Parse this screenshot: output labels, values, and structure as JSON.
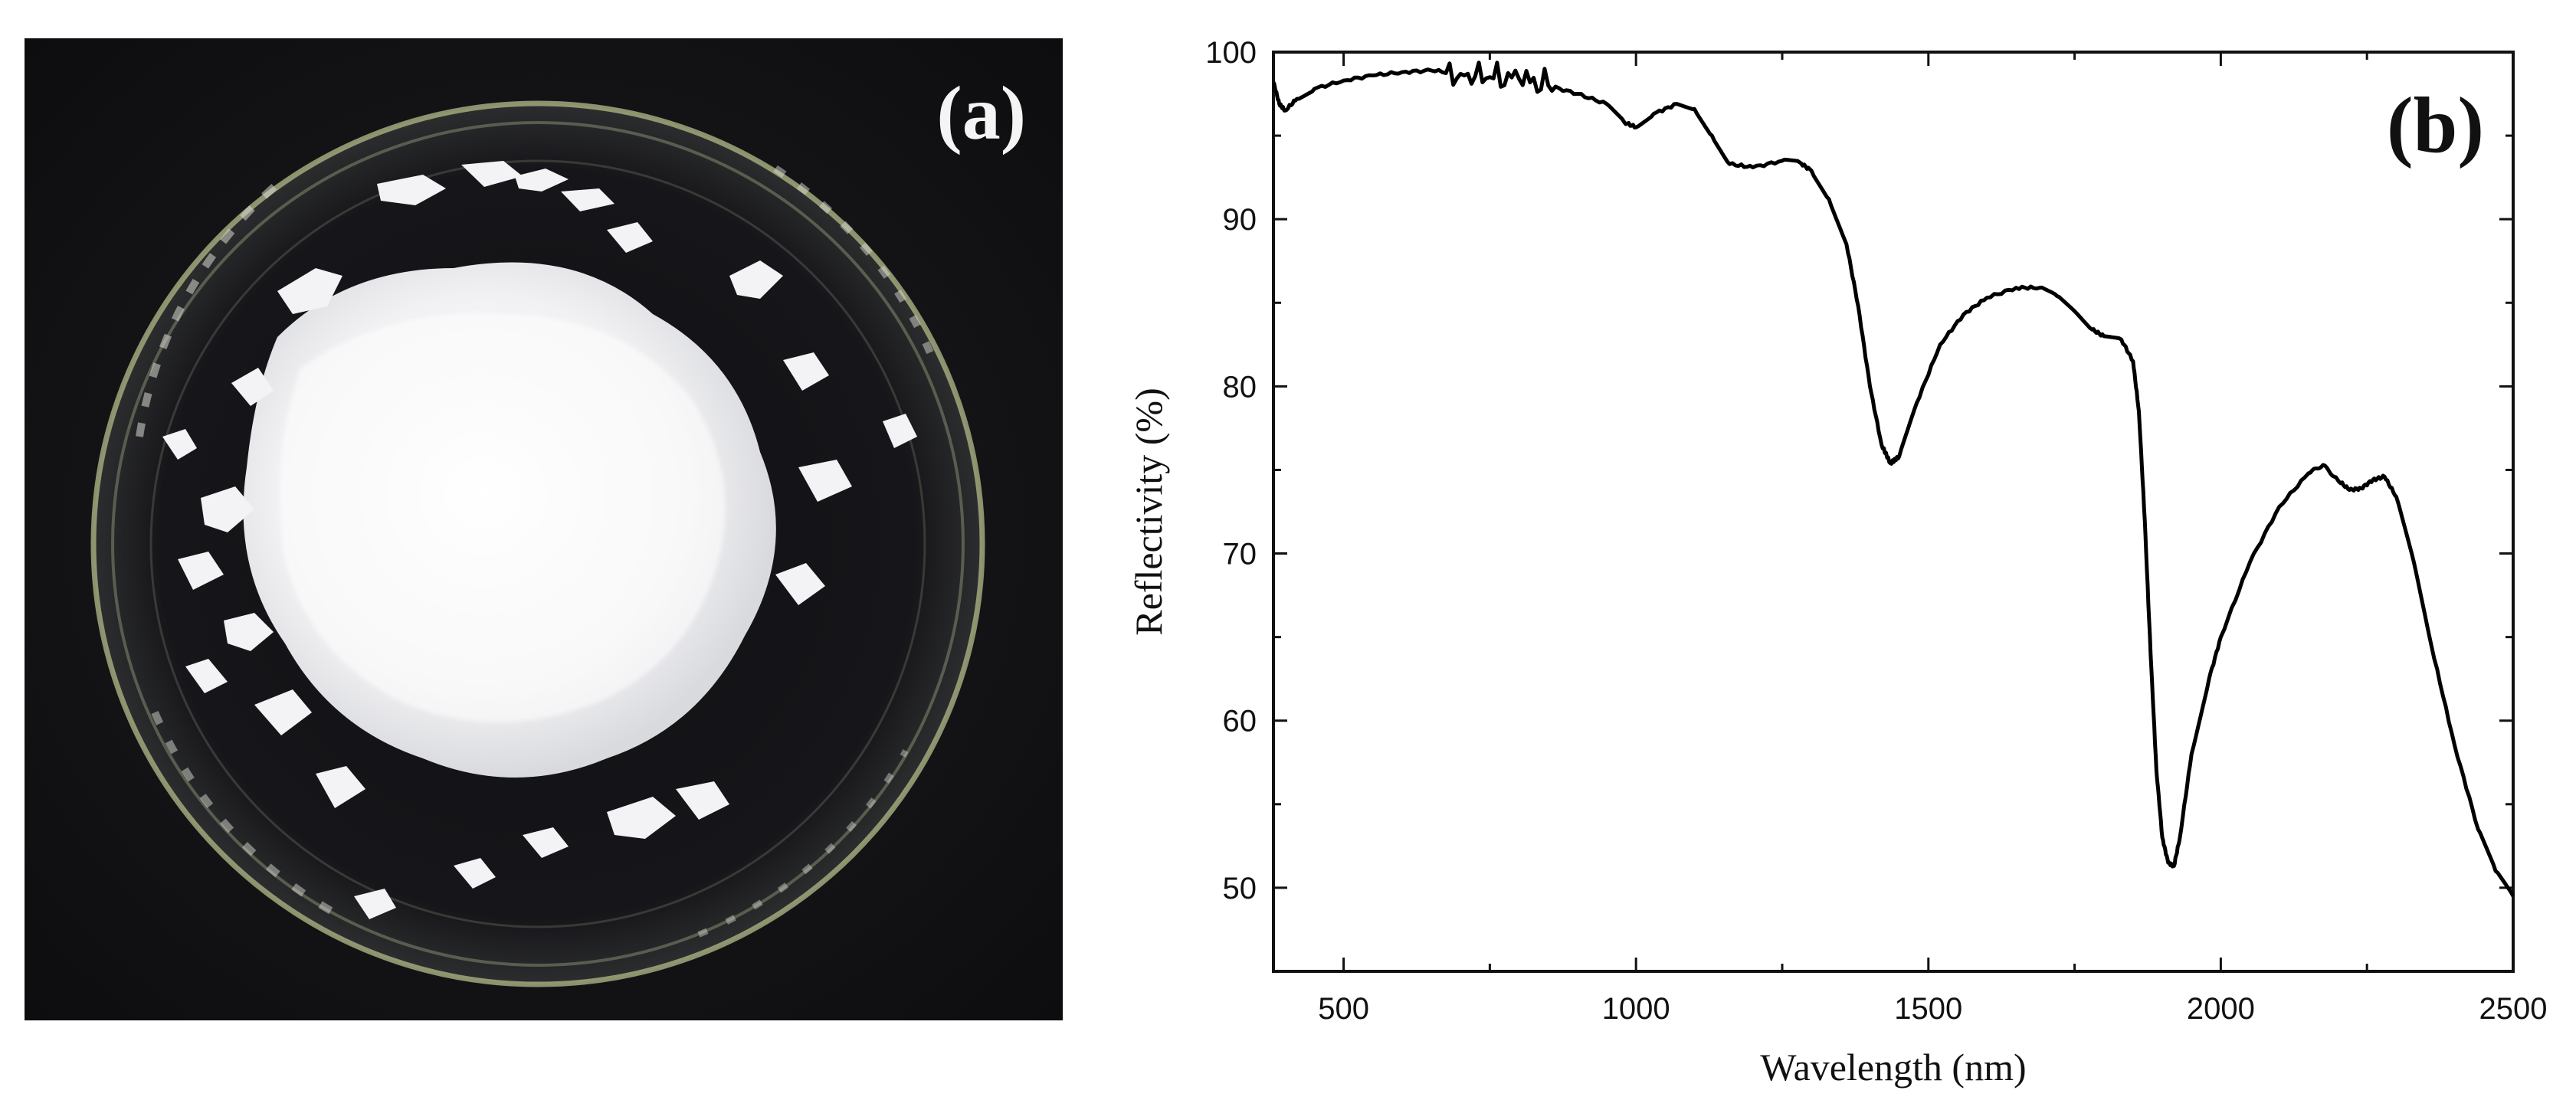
{
  "figure": {
    "panel_a": {
      "label": "(a)",
      "description_icon": "petri-dish-with-white-powder-photo"
    },
    "panel_b": {
      "label": "(b)"
    }
  },
  "chart_data": {
    "type": "line",
    "xlabel": "Wavelength (nm)",
    "ylabel": "Reflectivity (%)",
    "xlim": [
      380,
      2500
    ],
    "ylim": [
      45,
      100
    ],
    "xticks": [
      500,
      1000,
      1500,
      2000,
      2500
    ],
    "yticks": [
      50,
      60,
      70,
      80,
      90,
      100
    ],
    "grid": false,
    "line_color": "#000000",
    "series": [
      {
        "x": [
          380,
          390,
          400,
          420,
          450,
          500,
          550,
          600,
          650,
          700,
          750,
          800,
          850,
          900,
          950,
          980,
          1000,
          1030,
          1070,
          1100,
          1130,
          1160,
          1200,
          1250,
          1280,
          1300,
          1330,
          1360,
          1380,
          1400,
          1420,
          1435,
          1450,
          1480,
          1520,
          1560,
          1600,
          1650,
          1690,
          1720,
          1750,
          1780,
          1800,
          1830,
          1850,
          1860,
          1870,
          1880,
          1890,
          1900,
          1910,
          1920,
          1930,
          1950,
          1980,
          2000,
          2050,
          2100,
          2150,
          2175,
          2200,
          2220,
          2240,
          2260,
          2280,
          2300,
          2330,
          2360,
          2400,
          2440,
          2470,
          2500
        ],
        "y": [
          98.2,
          96.9,
          96.5,
          97.2,
          97.8,
          98.3,
          98.6,
          98.8,
          98.9,
          98.7,
          98.5,
          98.4,
          98.0,
          97.5,
          96.9,
          95.8,
          95.5,
          96.3,
          96.9,
          96.6,
          95.0,
          93.3,
          93.1,
          93.5,
          93.4,
          92.9,
          91.2,
          88.5,
          84.8,
          80.0,
          76.5,
          75.4,
          75.8,
          79.0,
          82.5,
          84.3,
          85.3,
          85.9,
          85.9,
          85.4,
          84.5,
          83.4,
          83.0,
          82.8,
          81.5,
          78.5,
          72.0,
          64.0,
          57.0,
          53.0,
          51.5,
          51.3,
          53.0,
          58.0,
          62.5,
          65.0,
          69.5,
          72.8,
          74.8,
          75.3,
          74.4,
          73.8,
          73.9,
          74.4,
          74.6,
          73.4,
          69.5,
          64.5,
          58.5,
          53.5,
          51.0,
          49.5
        ]
      }
    ],
    "noise_region": [
      680,
      860
    ]
  }
}
